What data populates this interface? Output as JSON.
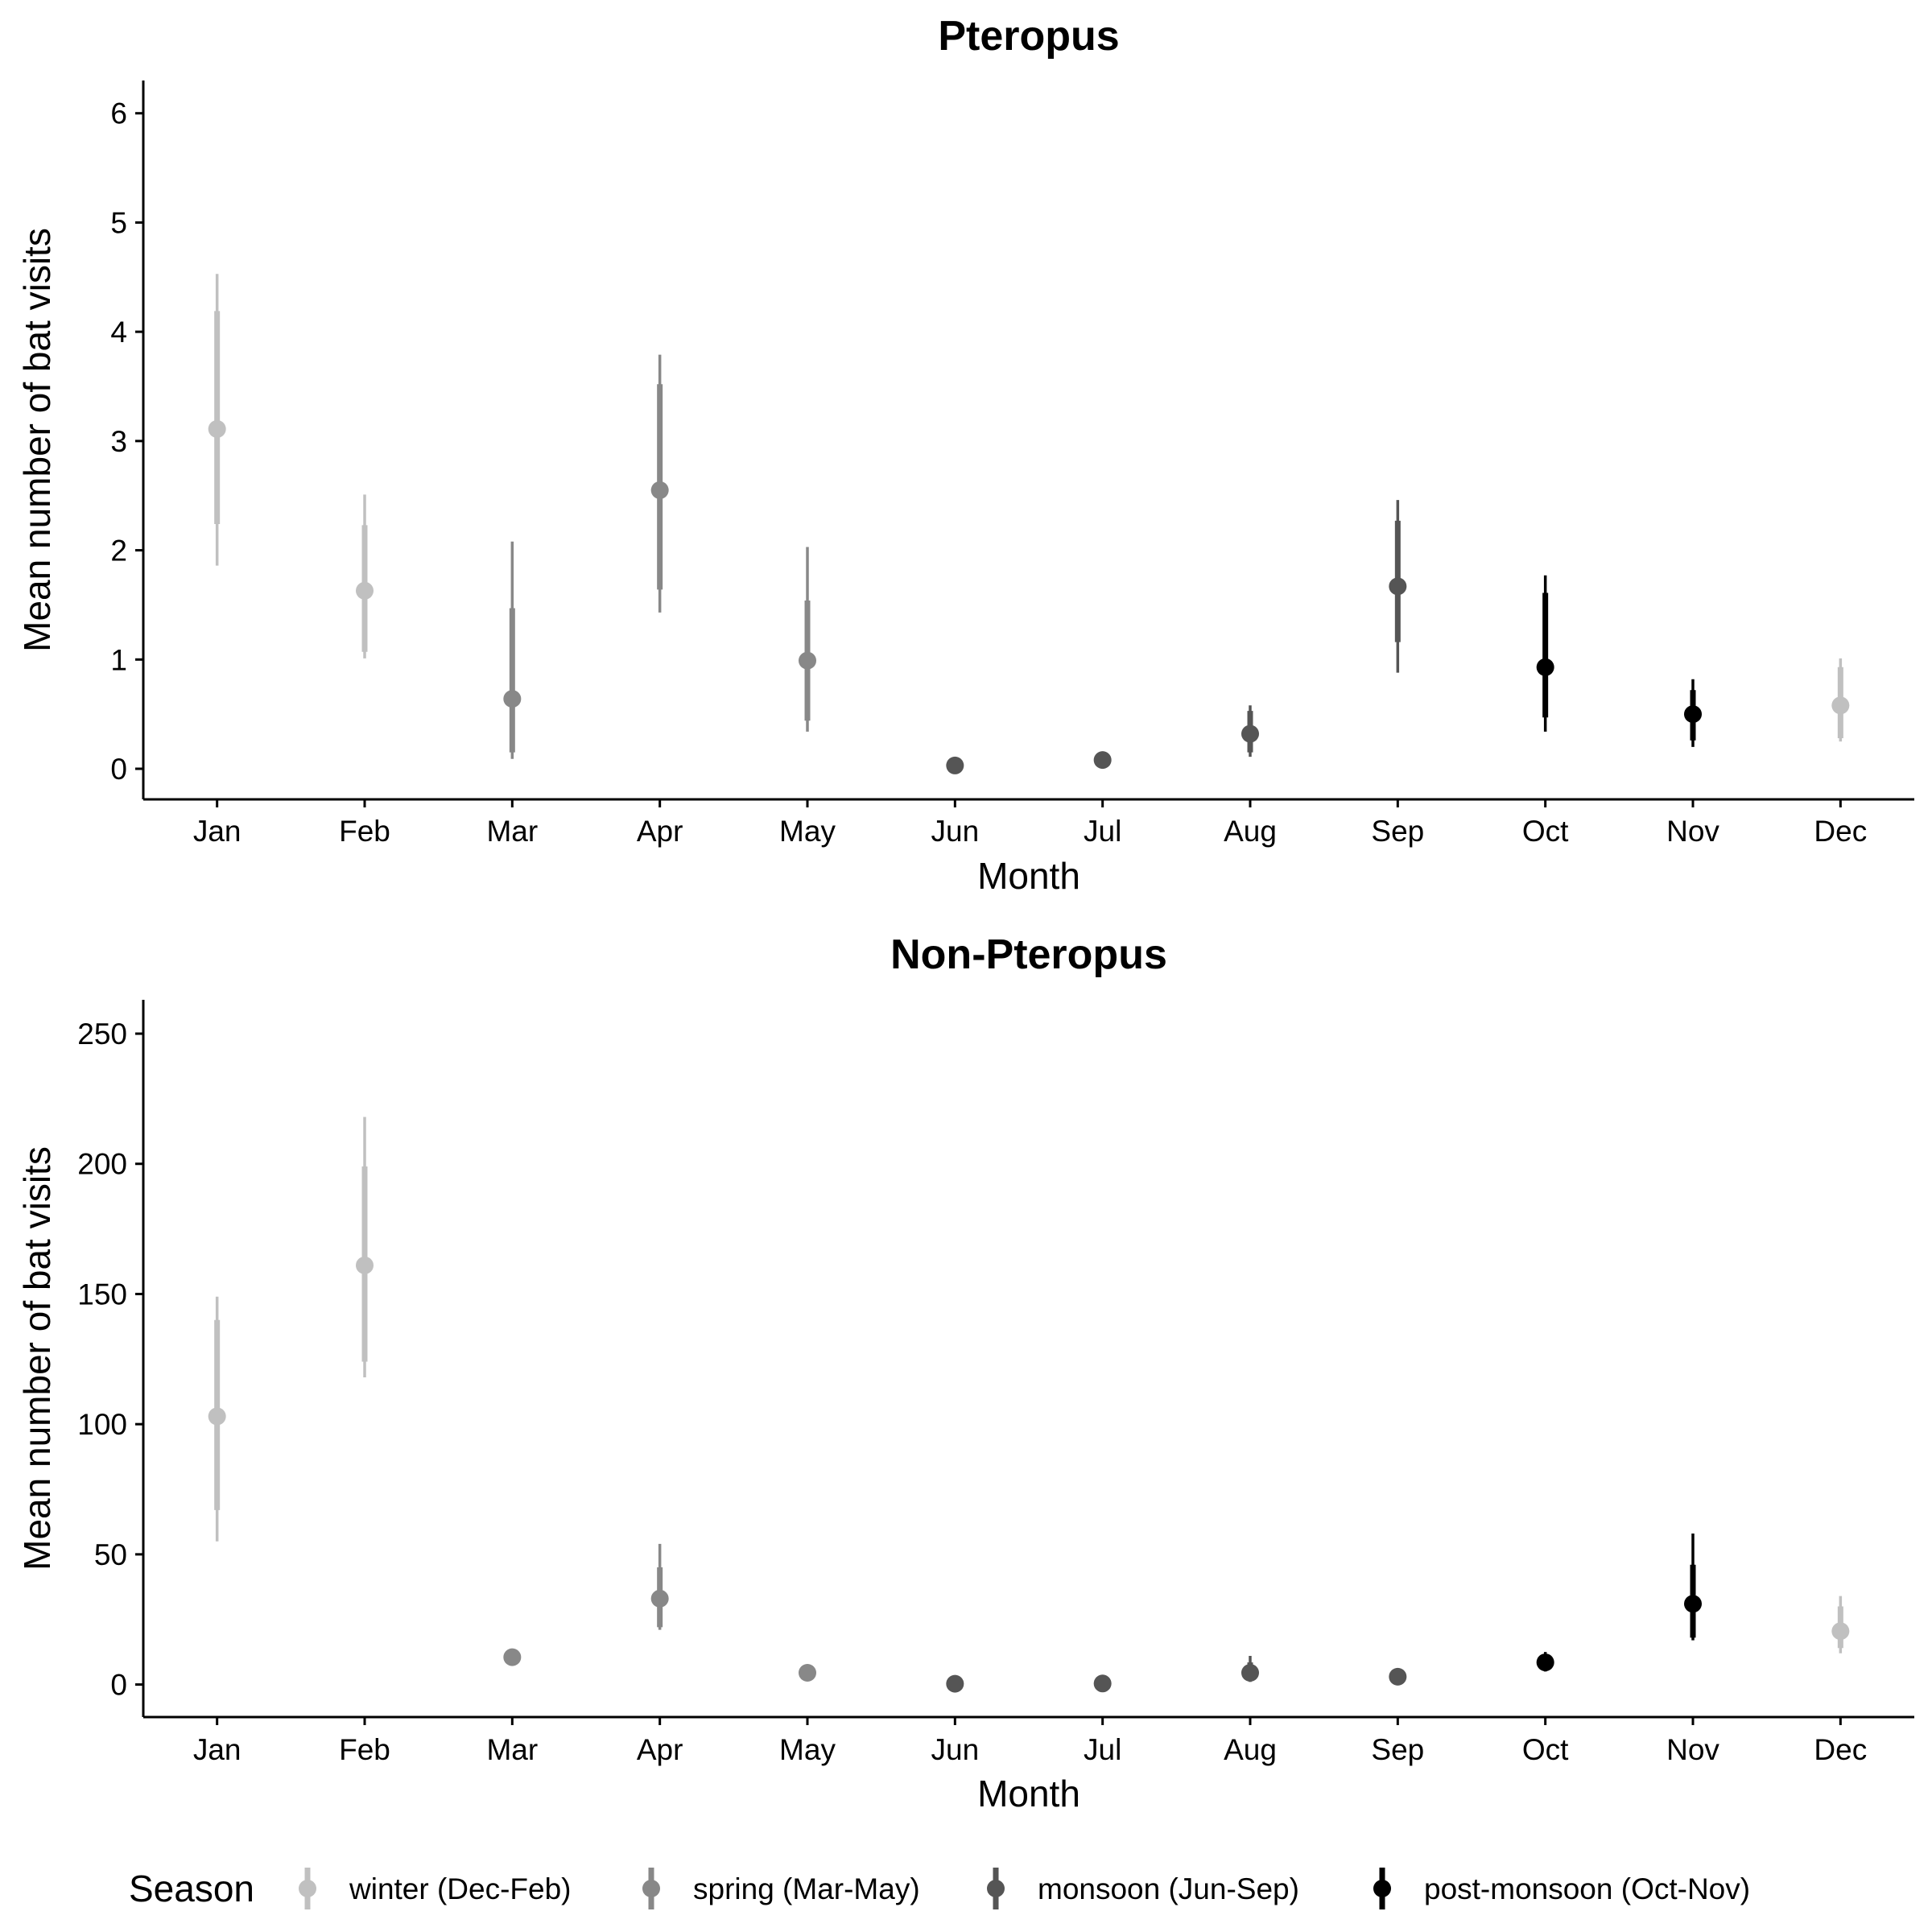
{
  "chart_data": [
    {
      "type": "scatter",
      "title": "Pteropus",
      "xlabel": "Month",
      "ylabel": "Mean number of bat visits",
      "categories": [
        "Jan",
        "Feb",
        "Mar",
        "Apr",
        "May",
        "Jun",
        "Jul",
        "Aug",
        "Sep",
        "Oct",
        "Nov",
        "Dec"
      ],
      "yticks": [
        0,
        1,
        2,
        3,
        4,
        5,
        6
      ],
      "ylim": [
        -0.28,
        6.3
      ],
      "grid": false,
      "points": [
        {
          "month": "Jan",
          "season": "winter",
          "mean": 3.11,
          "inner": [
            2.24,
            4.19
          ],
          "outer": [
            1.86,
            4.53
          ]
        },
        {
          "month": "Feb",
          "season": "winter",
          "mean": 1.63,
          "inner": [
            1.07,
            2.23
          ],
          "outer": [
            1.01,
            2.51
          ]
        },
        {
          "month": "Mar",
          "season": "spring",
          "mean": 0.64,
          "inner": [
            0.15,
            1.47
          ],
          "outer": [
            0.09,
            2.08
          ]
        },
        {
          "month": "Apr",
          "season": "spring",
          "mean": 2.55,
          "inner": [
            1.64,
            3.52
          ],
          "outer": [
            1.43,
            3.79
          ]
        },
        {
          "month": "May",
          "season": "spring",
          "mean": 0.99,
          "inner": [
            0.44,
            1.54
          ],
          "outer": [
            0.34,
            2.03
          ]
        },
        {
          "month": "Jun",
          "season": "monsoon",
          "mean": 0.03,
          "inner": [
            0.0,
            0.05
          ],
          "outer": [
            0.0,
            0.07
          ]
        },
        {
          "month": "Jul",
          "season": "monsoon",
          "mean": 0.08,
          "inner": [
            0.03,
            0.12
          ],
          "outer": [
            0.01,
            0.15
          ]
        },
        {
          "month": "Aug",
          "season": "monsoon",
          "mean": 0.32,
          "inner": [
            0.15,
            0.53
          ],
          "outer": [
            0.11,
            0.58
          ]
        },
        {
          "month": "Sep",
          "season": "monsoon",
          "mean": 1.67,
          "inner": [
            1.16,
            2.27
          ],
          "outer": [
            0.88,
            2.46
          ]
        },
        {
          "month": "Oct",
          "season": "post-monsoon",
          "mean": 0.93,
          "inner": [
            0.47,
            1.61
          ],
          "outer": [
            0.34,
            1.77
          ]
        },
        {
          "month": "Nov",
          "season": "post-monsoon",
          "mean": 0.5,
          "inner": [
            0.26,
            0.72
          ],
          "outer": [
            0.2,
            0.82
          ]
        },
        {
          "month": "Dec",
          "season": "winter",
          "mean": 0.58,
          "inner": [
            0.28,
            0.93
          ],
          "outer": [
            0.25,
            1.01
          ]
        }
      ]
    },
    {
      "type": "scatter",
      "title": "Non-Pteropus",
      "xlabel": "Month",
      "ylabel": "Mean number of bat visits",
      "categories": [
        "Jan",
        "Feb",
        "Mar",
        "Apr",
        "May",
        "Jun",
        "Jul",
        "Aug",
        "Sep",
        "Oct",
        "Nov",
        "Dec"
      ],
      "yticks": [
        0,
        50,
        100,
        150,
        200,
        250
      ],
      "ylim": [
        -12.5,
        263
      ],
      "grid": false,
      "points": [
        {
          "month": "Jan",
          "season": "winter",
          "mean": 103,
          "inner": [
            67,
            140
          ],
          "outer": [
            55,
            149
          ]
        },
        {
          "month": "Feb",
          "season": "winter",
          "mean": 161,
          "inner": [
            124,
            199
          ],
          "outer": [
            118,
            218
          ]
        },
        {
          "month": "Mar",
          "season": "spring",
          "mean": 10.5,
          "inner": [
            9,
            12
          ],
          "outer": [
            8,
            13
          ]
        },
        {
          "month": "Apr",
          "season": "spring",
          "mean": 33,
          "inner": [
            22,
            45
          ],
          "outer": [
            21,
            54
          ]
        },
        {
          "month": "May",
          "season": "spring",
          "mean": 4.5,
          "inner": [
            3.5,
            5.5
          ],
          "outer": [
            3,
            6
          ]
        },
        {
          "month": "Jun",
          "season": "monsoon",
          "mean": 0.3,
          "inner": [
            0.1,
            0.5
          ],
          "outer": [
            0,
            0.7
          ]
        },
        {
          "month": "Jul",
          "season": "monsoon",
          "mean": 0.4,
          "inner": [
            0.1,
            0.7
          ],
          "outer": [
            0,
            1
          ]
        },
        {
          "month": "Aug",
          "season": "monsoon",
          "mean": 4.5,
          "inner": [
            2,
            8.5
          ],
          "outer": [
            1,
            11
          ]
        },
        {
          "month": "Sep",
          "season": "monsoon",
          "mean": 3,
          "inner": [
            2,
            4
          ],
          "outer": [
            1.5,
            4.5
          ]
        },
        {
          "month": "Oct",
          "season": "post-monsoon",
          "mean": 8.5,
          "inner": [
            6,
            11
          ],
          "outer": [
            5,
            12.5
          ]
        },
        {
          "month": "Nov",
          "season": "post-monsoon",
          "mean": 31,
          "inner": [
            18,
            46
          ],
          "outer": [
            17,
            58
          ]
        },
        {
          "month": "Dec",
          "season": "winter",
          "mean": 20.5,
          "inner": [
            14,
            30
          ],
          "outer": [
            12,
            34
          ]
        }
      ]
    }
  ],
  "legend": {
    "title": "Season",
    "position": "bottom",
    "items": [
      {
        "key": "winter",
        "label": "winter (Dec-Feb)",
        "color": "#c0c0c0"
      },
      {
        "key": "spring",
        "label": "spring (Mar-May)",
        "color": "#888888"
      },
      {
        "key": "monsoon",
        "label": "monsoon (Jun-Sep)",
        "color": "#555555"
      },
      {
        "key": "post-monsoon",
        "label": "post-monsoon (Oct-Nov)",
        "color": "#000000"
      }
    ]
  }
}
